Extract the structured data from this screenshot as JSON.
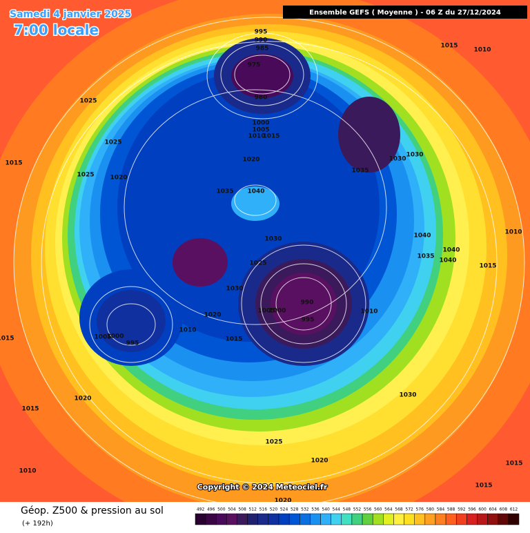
{
  "header": {
    "title": "Samedi 4 janvier 2025",
    "time": "7:00 locale",
    "model": "Ensemble GEFS  ( Moyenne )  -  06 Z du 27/12/2024"
  },
  "map": {
    "copyright": "Copyright © 2024 Meteociel.fr",
    "isobar_labels": [
      995,
      990,
      985,
      975,
      980,
      1015,
      1010,
      1025,
      1025,
      1015,
      1025,
      1020,
      1000,
      1005,
      1010,
      1015,
      1020,
      1035,
      1030,
      1030,
      1035,
      1040,
      1030,
      1025,
      1040,
      1040,
      1035,
      1040,
      1015,
      1010,
      1030,
      990,
      1005,
      1000,
      995,
      1010,
      1020,
      1010,
      1015,
      1005,
      1000,
      995,
      1015,
      1020,
      1015,
      1030,
      1025,
      1020,
      1010,
      1015,
      1015,
      1020
    ]
  },
  "footer": {
    "title": "Géop. Z500 & pression au sol",
    "lead": "(+ 192h)",
    "scale": {
      "values": [
        492,
        496,
        500,
        504,
        508,
        512,
        516,
        520,
        524,
        528,
        532,
        536,
        540,
        544,
        548,
        552,
        556,
        560,
        564,
        568,
        572,
        576,
        580,
        584,
        588,
        592,
        596,
        600,
        604,
        608,
        612
      ],
      "colors": [
        "#2a0030",
        "#3a0545",
        "#4a0a5a",
        "#5a1060",
        "#3b1a5c",
        "#202070",
        "#1a2a8a",
        "#1030a0",
        "#0040c0",
        "#0055d5",
        "#0a70e0",
        "#1a90f0",
        "#30b0f8",
        "#40d0f0",
        "#40e0c0",
        "#40d080",
        "#60d040",
        "#a0e020",
        "#e0f020",
        "#fff040",
        "#ffe020",
        "#ffc020",
        "#ffa020",
        "#ff8020",
        "#ff6020",
        "#f04020",
        "#d82020",
        "#b81818",
        "#901010",
        "#600808",
        "#300000"
      ]
    }
  }
}
